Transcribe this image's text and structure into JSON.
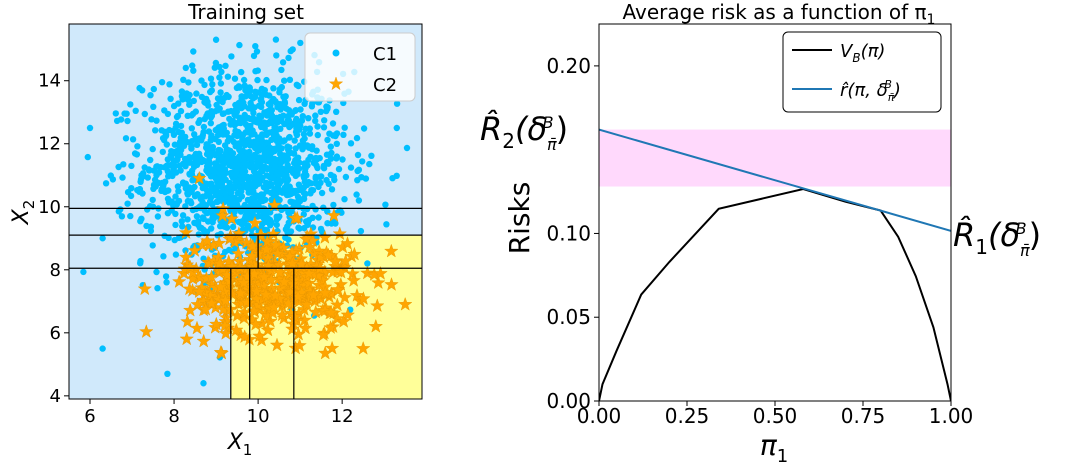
{
  "chart_data": [
    {
      "type": "scatter",
      "title": "Training set",
      "xlabel": "X",
      "xlabel_sub": "1",
      "ylabel": "X",
      "ylabel_sub": "2",
      "xlim": [
        5.5,
        13.9
      ],
      "ylim": [
        3.9,
        15.8
      ],
      "xticks": [
        6,
        8,
        10,
        12
      ],
      "yticks": [
        4,
        6,
        8,
        10,
        12,
        14
      ],
      "legend": {
        "position": "top-right",
        "entries": [
          "C1",
          "C2"
        ]
      },
      "colors": {
        "C1": "#00bfff",
        "C2": "#ffa500",
        "region_C1": "#d0e9fb",
        "region_C2": "#ffff99",
        "frontier": "#000000"
      },
      "series": [
        {
          "name": "C1",
          "marker": "circle",
          "center": [
            9.7,
            11.2
          ],
          "spread": [
            1.2,
            1.55
          ],
          "n": 1500,
          "outliers": [
            [
              6.3,
              5.5
            ],
            [
              9.0,
              15.3
            ],
            [
              6.0,
              12.5
            ],
            [
              13.3,
              12.5
            ],
            [
              8.7,
              4.4
            ],
            [
              12.6,
              8.2
            ],
            [
              6.3,
              9.0
            ]
          ]
        },
        {
          "name": "C2",
          "marker": "star",
          "center": [
            10.3,
            7.6
          ],
          "spread": [
            1.0,
            0.85
          ],
          "n": 450,
          "outliers": [
            [
              8.6,
              10.9
            ],
            [
              13.5,
              6.9
            ],
            [
              12.8,
              6.2
            ],
            [
              12.5,
              5.5
            ],
            [
              8.3,
              5.8
            ]
          ]
        }
      ],
      "frontiers": {
        "horizontal": [
          [
            5.5,
            13.9,
            9.95
          ],
          [
            5.5,
            13.9,
            9.1
          ],
          [
            5.5,
            13.9,
            8.05
          ]
        ],
        "vertical": [
          [
            9.35,
            3.9,
            8.05
          ],
          [
            9.8,
            3.9,
            8.05
          ],
          [
            10.0,
            8.05,
            9.1
          ],
          [
            10.85,
            3.9,
            8.05
          ]
        ]
      },
      "regions_C2": [
        [
          [
            9.35,
            3.9
          ],
          [
            13.9,
            3.9
          ],
          [
            13.9,
            8.05
          ],
          [
            9.35,
            8.05
          ]
        ],
        [
          [
            10.0,
            8.05
          ],
          [
            13.9,
            8.05
          ],
          [
            13.9,
            9.1
          ],
          [
            10.0,
            9.1
          ]
        ]
      ]
    },
    {
      "type": "line",
      "title": "Average risk as a function of π",
      "title_sub": "1",
      "xlabel": "π",
      "xlabel_sub": "1",
      "ylabel": "Risks",
      "xlim": [
        0,
        1
      ],
      "ylim": [
        0,
        0.225
      ],
      "xticks": [
        "0.00",
        "0.25",
        "0.50",
        "0.75",
        "1.00"
      ],
      "yticks": [
        "0.00",
        "0.05",
        "0.10",
        "0.20"
      ],
      "legend": {
        "position": "top-right"
      },
      "series": [
        {
          "name": "V_B(π)",
          "color": "#000000",
          "x": [
            0,
            0.01,
            0.05,
            0.12,
            0.2,
            0.34,
            0.58,
            0.7,
            0.8,
            0.85,
            0.9,
            0.95,
            0.99,
            1.0
          ],
          "y": [
            0,
            0.01,
            0.03,
            0.0635,
            0.083,
            0.1147,
            0.1265,
            0.119,
            0.1137,
            0.098,
            0.0745,
            0.044,
            0.01,
            0
          ]
        },
        {
          "name": "r̂(π, δ_π̄^B)",
          "color": "#1f77b4",
          "x": [
            0,
            1
          ],
          "y": [
            0.162,
            0.1015
          ]
        }
      ],
      "band": {
        "ymin": 0.128,
        "ymax": 0.162,
        "color": "#ffd9fc"
      },
      "annotations": [
        {
          "text": "R̂₂(δ_π̄^B)",
          "at": "y-axis left",
          "y": 0.162
        },
        {
          "text": "R̂₁(δ_π̄^B)",
          "at": "right of x = 1",
          "y": 0.1015
        }
      ]
    }
  ],
  "labels": {
    "legend1_c1": "C1",
    "legend1_c2": "C2",
    "title1": "Training set",
    "title2": "Average risk as a function of π",
    "title2_sub": "1",
    "xlab1": "X",
    "xlab1_sub": "1",
    "ylab1": "X",
    "ylab1_sub": "2",
    "xlab2": "π",
    "xlab2_sub": "1",
    "ylab2": "Risks",
    "leg2_v": "V",
    "leg2_v_sub": "B",
    "leg2_v_arg": "(π)",
    "leg2_r": "r̂(π, δ",
    "leg2_r_sub": "π̄",
    "leg2_r_sup": "B",
    "leg2_r_end": ")",
    "ann_r2": "R̂",
    "ann_r2_sub": "2",
    "ann_r1": "R̂",
    "ann_r1_sub": "1",
    "ann_delta_open": "(δ",
    "ann_delta_sub": "π̄",
    "ann_delta_sup": "B",
    "ann_close": ")"
  }
}
